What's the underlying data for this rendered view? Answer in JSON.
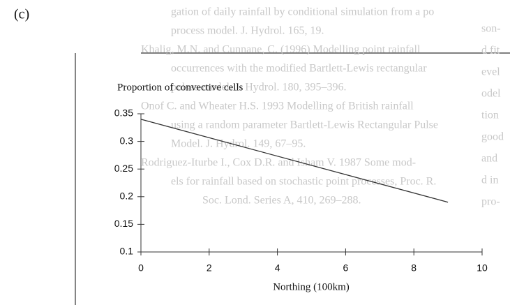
{
  "panel_label": "(c)",
  "background_text": [
    "gation of daily rainfall by conditional simulation from a po",
    "process model. J. Hydrol. 165, 19.",
    "Khalig, M.N. and Cunnane, C. (1996) Modelling point rainfall",
    "occurrences with the modified Bartlett-Lewis rectangular",
    "pulses model. J. Hydrol. 180, 395–396.",
    "Onof C. and Wheater H.S. 1993 Modelling of British rainfall",
    "using a random parameter Bartlett-Lewis Rectangular Pulse",
    "Model. J. Hydrol. 149, 67–95.",
    "Rodriguez-Iturbe I., Cox D.R. and Isham V. 1987 Some mod-",
    "els for rainfall based on stochastic point processes, Proc. R.",
    "Soc. Lond. Series A, 410, 269–288."
  ],
  "margin_text": [
    "son-",
    "d fit",
    "evel",
    "odel",
    "tion",
    "good",
    "and",
    "d in",
    "pro-"
  ],
  "chart_data": {
    "type": "line",
    "title": "Proportion of convective cells",
    "x_label": "Northing (100km)",
    "x": [
      0,
      9
    ],
    "series": [
      {
        "color": "#333333",
        "values": [
          0.34,
          0.19
        ]
      }
    ],
    "xlim": [
      0,
      10
    ],
    "xticks": [
      0,
      2,
      4,
      6,
      8,
      10
    ],
    "ylim": [
      0.1,
      0.35
    ],
    "yticks": [
      0.1,
      0.15,
      0.2,
      0.25,
      0.3,
      0.35
    ]
  }
}
